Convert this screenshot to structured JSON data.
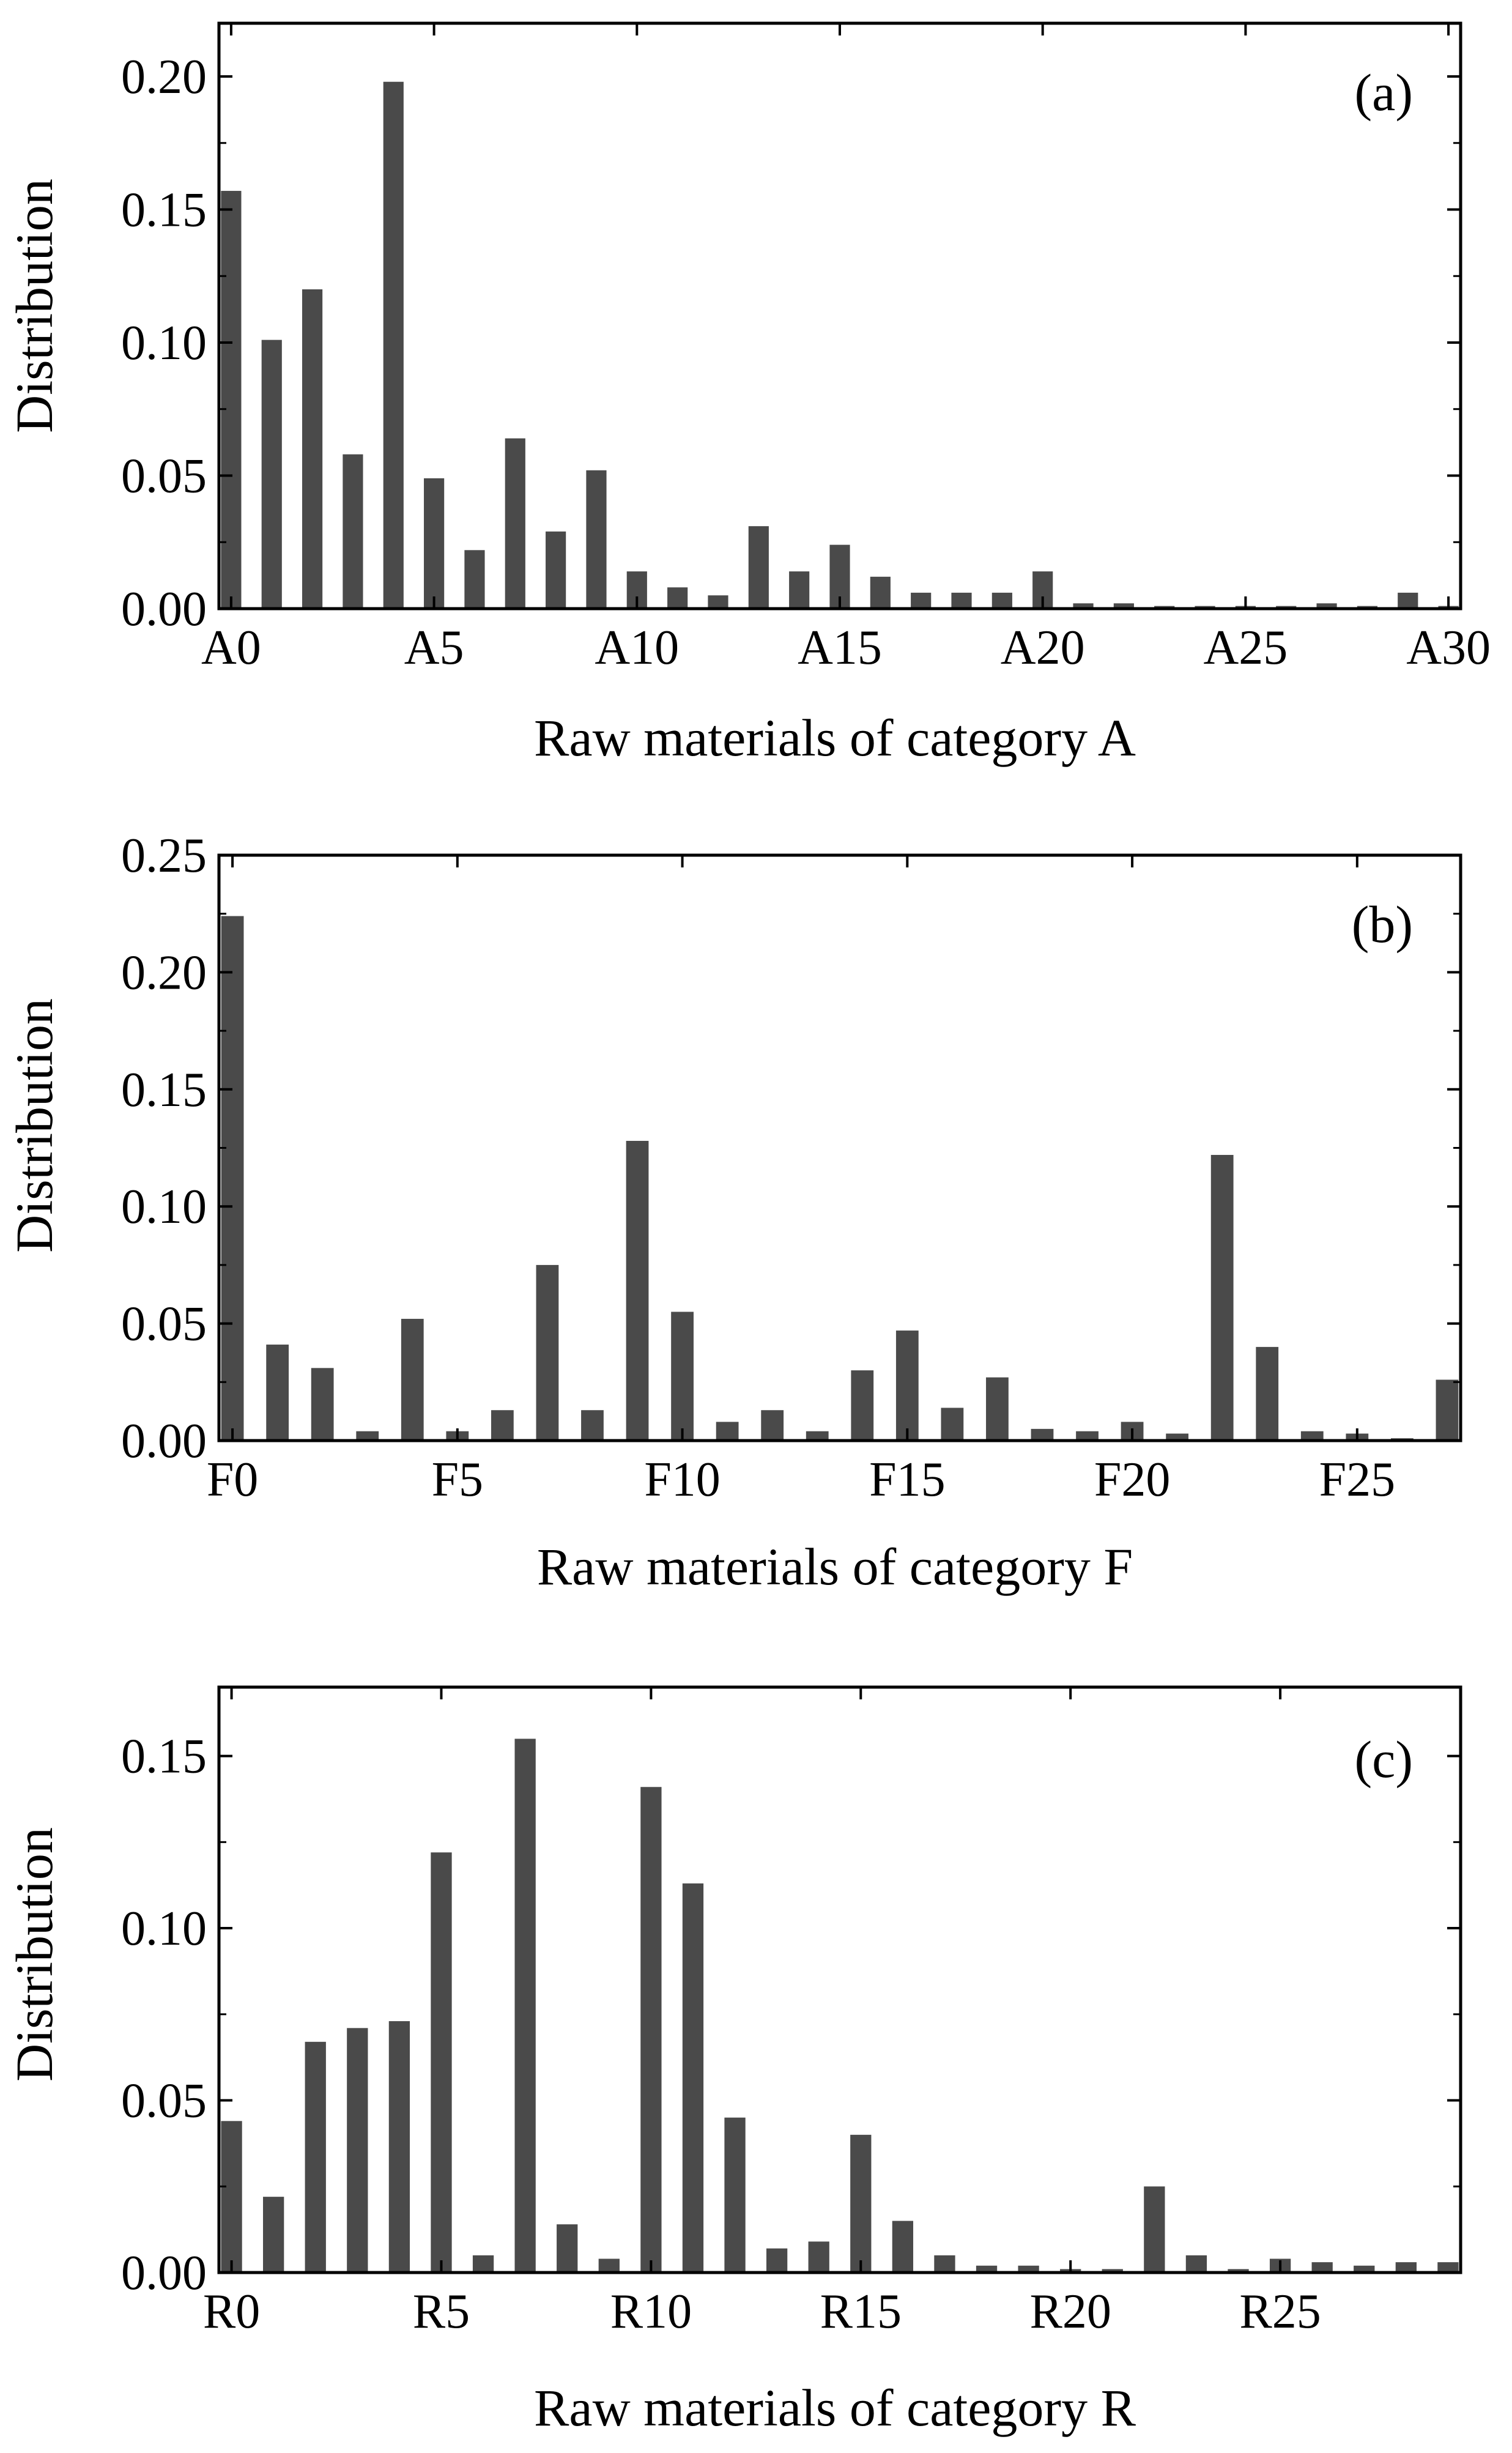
{
  "colors": {
    "bar": "#4a4a4a",
    "axis": "#000000",
    "background": "#ffffff"
  },
  "chart_data": [
    {
      "type": "bar",
      "panel_label": "(a)",
      "xlabel": "Raw materials of category A",
      "ylabel": "Distribution",
      "ylim": [
        0,
        0.22
      ],
      "yticks": [
        0.0,
        0.05,
        0.1,
        0.15,
        0.2
      ],
      "ytick_labels": [
        "0.00",
        "0.05",
        "0.10",
        "0.15",
        "0.20"
      ],
      "xtick_indices": [
        0,
        5,
        10,
        15,
        20,
        25,
        30
      ],
      "xtick_labels": [
        "A0",
        "A5",
        "A10",
        "A15",
        "A20",
        "A25",
        "A30"
      ],
      "categories": [
        "A0",
        "A1",
        "A2",
        "A3",
        "A4",
        "A5",
        "A6",
        "A7",
        "A8",
        "A9",
        "A10",
        "A11",
        "A12",
        "A13",
        "A14",
        "A15",
        "A16",
        "A17",
        "A18",
        "A19",
        "A20",
        "A21",
        "A22",
        "A23",
        "A24",
        "A25",
        "A26",
        "A27",
        "A28",
        "A29",
        "A30"
      ],
      "values": [
        0.157,
        0.101,
        0.12,
        0.058,
        0.198,
        0.049,
        0.022,
        0.064,
        0.029,
        0.052,
        0.014,
        0.008,
        0.005,
        0.031,
        0.014,
        0.024,
        0.012,
        0.006,
        0.006,
        0.006,
        0.014,
        0.002,
        0.002,
        0.001,
        0.001,
        0.001,
        0.001,
        0.002,
        0.001,
        0.006,
        0.001
      ]
    },
    {
      "type": "bar",
      "panel_label": "(b)",
      "xlabel": "Raw materials of category F",
      "ylabel": "Distribution",
      "ylim": [
        0,
        0.25
      ],
      "yticks": [
        0.0,
        0.05,
        0.1,
        0.15,
        0.2,
        0.25
      ],
      "ytick_labels": [
        "0.00",
        "0.05",
        "0.10",
        "0.15",
        "0.20",
        "0.25"
      ],
      "xtick_indices": [
        0,
        5,
        10,
        15,
        20,
        25
      ],
      "xtick_labels": [
        "F0",
        "F5",
        "F10",
        "F15",
        "F20",
        "F25"
      ],
      "categories": [
        "F0",
        "F1",
        "F2",
        "F3",
        "F4",
        "F5",
        "F6",
        "F7",
        "F8",
        "F9",
        "F10",
        "F11",
        "F12",
        "F13",
        "F14",
        "F15",
        "F16",
        "F17",
        "F18",
        "F19",
        "F20",
        "F21",
        "F22",
        "F23",
        "F24",
        "F25",
        "F26",
        "F27"
      ],
      "values": [
        0.224,
        0.041,
        0.031,
        0.004,
        0.052,
        0.004,
        0.013,
        0.075,
        0.013,
        0.128,
        0.055,
        0.008,
        0.013,
        0.004,
        0.03,
        0.047,
        0.014,
        0.027,
        0.005,
        0.004,
        0.008,
        0.003,
        0.122,
        0.04,
        0.004,
        0.003,
        0.001,
        0.026
      ]
    },
    {
      "type": "bar",
      "panel_label": "(c)",
      "xlabel": "Raw materials of category R",
      "ylabel": "Distribution",
      "ylim": [
        0,
        0.17
      ],
      "yticks": [
        0.0,
        0.05,
        0.1,
        0.15
      ],
      "ytick_labels": [
        "0.00",
        "0.05",
        "0.10",
        "0.15"
      ],
      "xtick_indices": [
        0,
        5,
        10,
        15,
        20,
        25
      ],
      "xtick_labels": [
        "R0",
        "R5",
        "R10",
        "R15",
        "R20",
        "R25"
      ],
      "categories": [
        "R0",
        "R1",
        "R2",
        "R3",
        "R4",
        "R5",
        "R6",
        "R7",
        "R8",
        "R9",
        "R10",
        "R11",
        "R12",
        "R13",
        "R14",
        "R15",
        "R16",
        "R17",
        "R18",
        "R19",
        "R20",
        "R21",
        "R22",
        "R23",
        "R24",
        "R25",
        "R26",
        "R27",
        "R28",
        "R29"
      ],
      "values": [
        0.044,
        0.022,
        0.067,
        0.071,
        0.073,
        0.122,
        0.005,
        0.155,
        0.014,
        0.004,
        0.141,
        0.113,
        0.045,
        0.007,
        0.009,
        0.04,
        0.015,
        0.005,
        0.002,
        0.002,
        0.001,
        0.001,
        0.025,
        0.005,
        0.001,
        0.004,
        0.003,
        0.002,
        0.003,
        0.003
      ]
    }
  ]
}
